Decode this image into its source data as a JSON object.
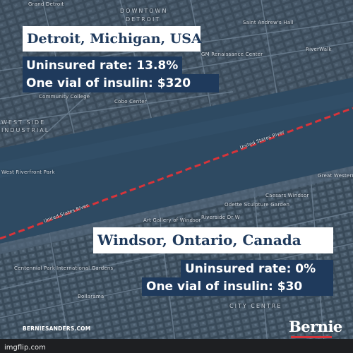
{
  "cards": {
    "detroit_title": "Detroit, Michigan, USA",
    "detroit_uninsured": "Uninsured rate: 13.8%",
    "detroit_insulin": "One vial of insulin: $320",
    "windsor_title": "Windsor, Ontario, Canada",
    "windsor_uninsured": "Uninsured rate: 0%",
    "windsor_insulin": "One vial of insulin: $30"
  },
  "map_labels": {
    "grand_detroit": "Grand Detroit",
    "downtown": "DOWNTOWN",
    "detroit": "DETROIT",
    "saint_andrews": "Saint Andrew's Hall",
    "riverwalk": "RiverWalk",
    "renaissance": "GM Renaissance Center",
    "community_college": "Community College",
    "cobo_center": "Cobo Center",
    "west_side": "WEST SIDE",
    "industrial": "INDUSTRIAL",
    "west_riverfront": "West Riverfront Park",
    "united_states_river_top": "United States River",
    "united_states_river_bottom": "United States River",
    "great_western": "Great Western Park",
    "caesars": "Caesars Windsor",
    "odette": "Odette Sculpture Garden",
    "riverside": "Riverside Dr W",
    "art_gallery": "Art Gallery of Windsor",
    "city_centre": "CITY CENTRE",
    "centennial": "Centennial Park",
    "international": "International Gardens",
    "bollarama": "Bollarama"
  },
  "footer": {
    "website": "BERNIESANDERS.COM",
    "brand": "Bernie",
    "watermark": "imgflip.com"
  },
  "colors": {
    "water": "#2e4a62",
    "land": "#3a4a58",
    "border_line": "#d8343a",
    "navy": "#1f3a5c",
    "white": "#ffffff",
    "brand_underline": "#d8343a"
  }
}
